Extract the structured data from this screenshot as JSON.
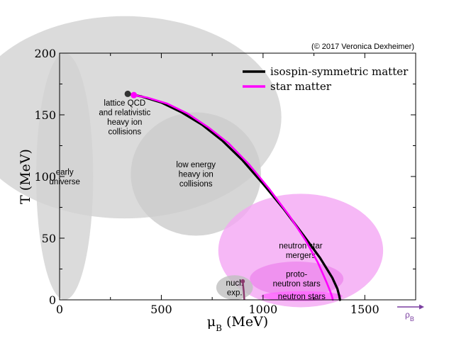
{
  "copyright": "(© 2017 Veronica Dexheimer)",
  "chart_data": {
    "type": "line",
    "title": "",
    "xlabel_main": "μ",
    "xlabel_sub": "B",
    "xlabel_unit": " (MeV)",
    "ylabel": "T (MeV)",
    "xlim": [
      0,
      1750
    ],
    "ylim": [
      0,
      200
    ],
    "x_ticks": [
      0,
      500,
      1000,
      1500
    ],
    "y_ticks": [
      0,
      50,
      100,
      150,
      200
    ],
    "x_tick_labels": [
      "0",
      "500",
      "1000",
      "1500"
    ],
    "y_tick_labels": [
      "0",
      "50",
      "100",
      "150",
      "200"
    ],
    "legend_position": "top-right",
    "series": [
      {
        "name": "isospin-symmetric matter",
        "color": "#000000",
        "x": [
          335,
          400,
          500,
          600,
          700,
          800,
          900,
          1000,
          1100,
          1200,
          1280,
          1340,
          1365,
          1375,
          1378
        ],
        "y": [
          167,
          165,
          160,
          152,
          142,
          129,
          113,
          94,
          74,
          52,
          34,
          18,
          9,
          3,
          0
        ]
      },
      {
        "name": "star matter",
        "color": "#ff00ff",
        "x": [
          365,
          430,
          530,
          630,
          730,
          830,
          930,
          1030,
          1130,
          1210,
          1270,
          1310,
          1330,
          1340,
          1343
        ],
        "y": [
          166,
          164,
          159,
          151,
          140,
          127,
          110,
          90,
          68,
          48,
          30,
          15,
          7,
          2,
          0
        ]
      }
    ],
    "endpoints": [
      {
        "x": 335,
        "y": 167,
        "color": "#333333"
      },
      {
        "x": 365,
        "y": 166,
        "color": "#ff00ff"
      }
    ],
    "short_line": {
      "x": [
        900,
        905,
        908
      ],
      "y": [
        15,
        7,
        0
      ],
      "color": "#8a3a6e"
    },
    "regions": [
      {
        "name": "early-universe",
        "lines": [
          "early",
          "universe"
        ],
        "cx": 25,
        "cy": 100,
        "rx": 140,
        "ry": 100,
        "color": "#d2d2d2"
      },
      {
        "name": "lattice-qcd",
        "lines": [
          "lattice QCD",
          "and relativistic",
          "heavy ion",
          "collisions"
        ],
        "cx": 320,
        "cy": 148,
        "rx": 770,
        "ry": 82,
        "color": "#d2d2d2"
      },
      {
        "name": "low-energy",
        "lines": [
          "low energy",
          "heavy ion",
          "collisions"
        ],
        "cx": 670,
        "cy": 102,
        "rx": 320,
        "ry": 50,
        "color": "#cccccc"
      },
      {
        "name": "neutron-star-mergers",
        "lines": [
          "neutron star",
          "mergers"
        ],
        "cx": 1185,
        "cy": 40,
        "rx": 405,
        "ry": 46,
        "color": "#f4a6f4"
      },
      {
        "name": "proto-neutron-stars",
        "lines": [
          "proto-",
          "neutron stars"
        ],
        "cx": 1165,
        "cy": 17,
        "rx": 230,
        "ry": 14,
        "color": "#ee88ee"
      },
      {
        "name": "neutron-stars",
        "lines": [
          "neutron stars"
        ],
        "cx": 1190,
        "cy": 3,
        "rx": 200,
        "ry": 4,
        "color": "#ff66ff"
      },
      {
        "name": "nuclear-experiments",
        "lines": [
          "nucl.",
          "exp."
        ],
        "cx": 860,
        "cy": 10,
        "rx": 90,
        "ry": 10,
        "color": "#bfbfbf"
      }
    ],
    "rho_label_main": "ρ",
    "rho_label_sub": "B",
    "rho_color": "#7b3fa0"
  }
}
